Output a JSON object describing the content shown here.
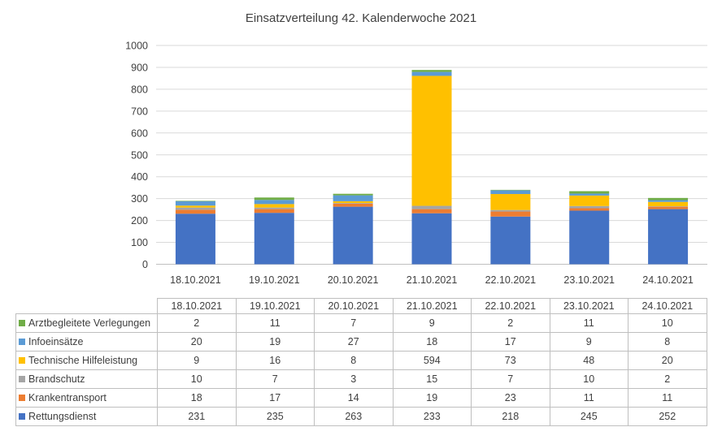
{
  "chart_data": {
    "type": "bar",
    "stacked": true,
    "title": "Einsatzverteilung 42. Kalenderwoche 2021",
    "categories": [
      "18.10.2021",
      "19.10.2021",
      "20.10.2021",
      "21.10.2021",
      "22.10.2021",
      "23.10.2021",
      "24.10.2021"
    ],
    "ylim": [
      0,
      1000
    ],
    "yticks": [
      "0",
      "100",
      "200",
      "300",
      "400",
      "500",
      "600",
      "700",
      "800",
      "900",
      "1000"
    ],
    "grid": true,
    "series": [
      {
        "name": "Rettungsdienst",
        "color": "#4472C4",
        "values": [
          231,
          235,
          263,
          233,
          218,
          245,
          252
        ]
      },
      {
        "name": "Krankentransport",
        "color": "#ED7D31",
        "values": [
          18,
          17,
          14,
          19,
          23,
          11,
          11
        ]
      },
      {
        "name": "Brandschutz",
        "color": "#A5A5A5",
        "values": [
          10,
          7,
          3,
          15,
          7,
          10,
          2
        ]
      },
      {
        "name": "Technische Hilfeleistung",
        "color": "#FFC000",
        "values": [
          9,
          16,
          8,
          594,
          73,
          48,
          20
        ]
      },
      {
        "name": "Infoeinsätze",
        "color": "#5B9BD5",
        "values": [
          20,
          19,
          27,
          18,
          17,
          9,
          8
        ]
      },
      {
        "name": "Arztbegleitete Verlegungen",
        "color": "#70AD47",
        "values": [
          2,
          11,
          7,
          9,
          2,
          11,
          10
        ]
      }
    ],
    "table_row_order": [
      "Arztbegleitete Verlegungen",
      "Infoeinsätze",
      "Technische Hilfeleistung",
      "Brandschutz",
      "Krankentransport",
      "Rettungsdienst"
    ]
  }
}
